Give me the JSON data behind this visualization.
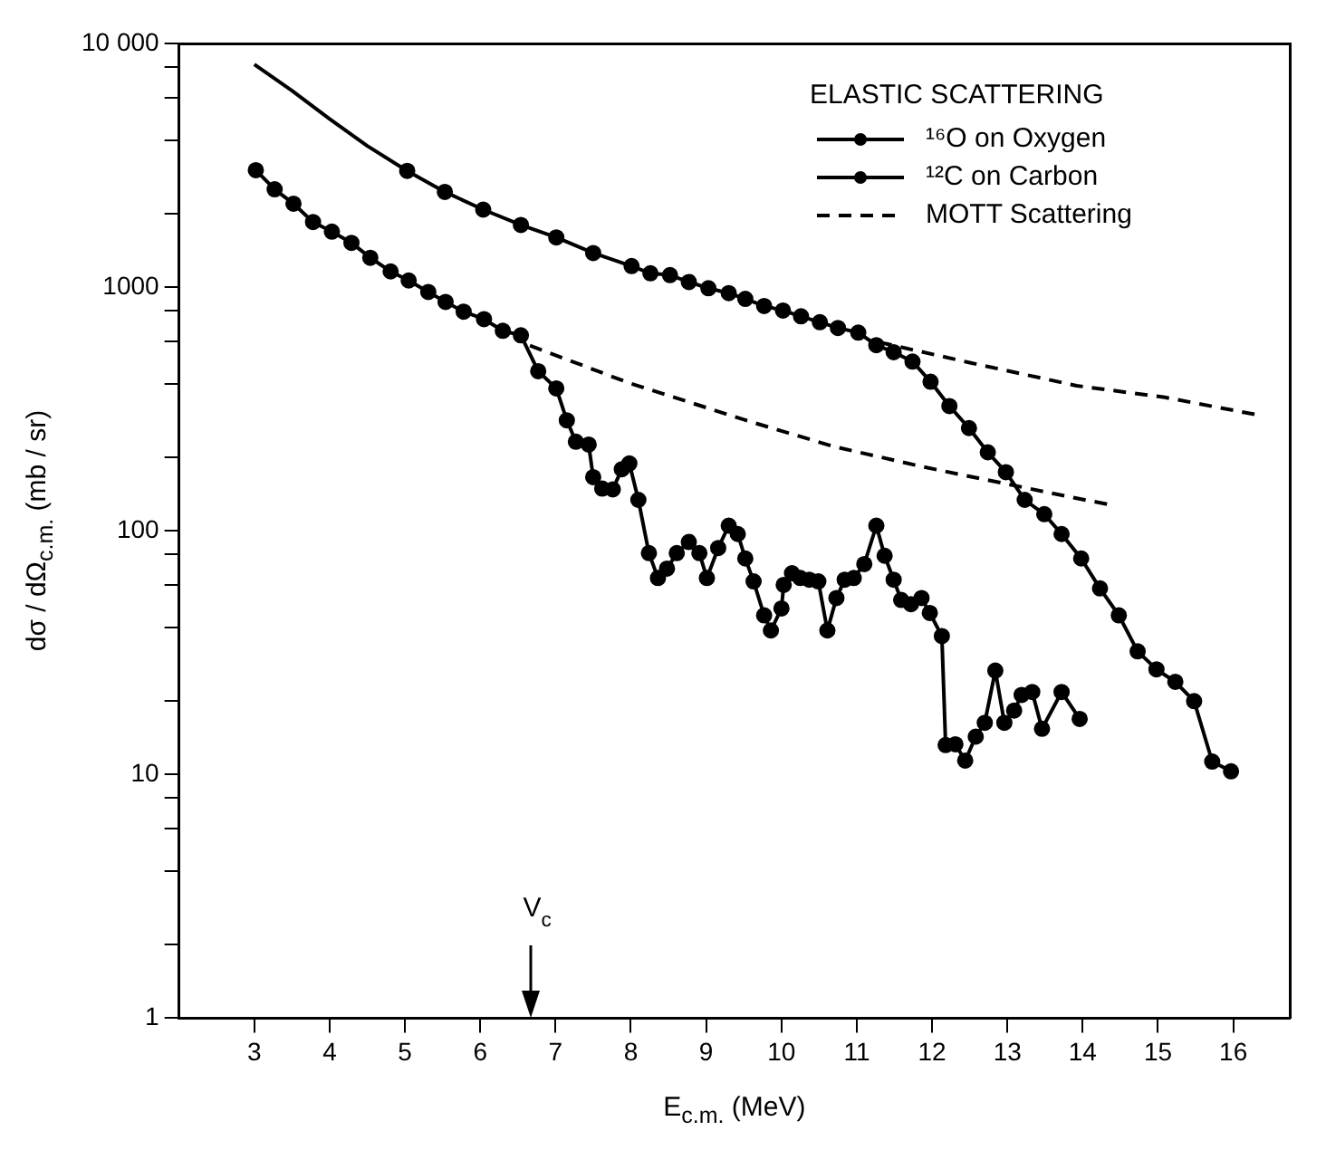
{
  "chart_data": {
    "type": "line",
    "xlabel": "E$_{c.m.}$ (MeV)",
    "ylabel": "dσ / dΩ$_{c.m.}$  (mb / sr)",
    "legend_title": "ELASTIC SCATTERING",
    "log": "y",
    "grid": false,
    "legend": "top right",
    "xlim": [
      2,
      16.75
    ],
    "xticks": [
      3,
      4,
      5,
      6,
      7,
      8,
      9,
      10,
      11,
      12,
      13,
      14,
      15,
      16
    ],
    "ylim": [
      1,
      10000
    ],
    "yticks": [
      1,
      {
        "value": 2,
        "label": null
      },
      {
        "value": 4,
        "label": null
      },
      {
        "value": 6,
        "label": null
      },
      {
        "value": 8,
        "label": null
      },
      10,
      {
        "value": 20,
        "label": null
      },
      {
        "value": 40,
        "label": null
      },
      {
        "value": 60,
        "label": null
      },
      {
        "value": 80,
        "label": null
      },
      100,
      {
        "value": 200,
        "label": null
      },
      {
        "value": 400,
        "label": null
      },
      {
        "value": 600,
        "label": null
      },
      {
        "value": 800,
        "label": null
      },
      1000,
      {
        "value": 2000,
        "label": null
      },
      {
        "value": 4000,
        "label": null
      },
      {
        "value": 6000,
        "label": null
      },
      {
        "value": 8000,
        "label": null
      },
      {
        "value": 10000,
        "label": "10 000"
      }
    ],
    "annotations": [
      "V$_{c}$"
    ],
    "series": [
      {
        "name": "¹⁶O on Oxygen",
        "color": "#000000",
        "marker": "circle",
        "line_style": "solid",
        "x": [
          5.03,
          5.53,
          6.04,
          6.54,
          7.01,
          7.5,
          8.01,
          8.26,
          8.52,
          8.77,
          9.03,
          9.3,
          9.52,
          9.77,
          10.02,
          10.26,
          10.51,
          10.75,
          11.02,
          11.26,
          11.49,
          11.74,
          11.98,
          12.23,
          12.49,
          12.74,
          12.98,
          13.23,
          13.49,
          13.72,
          13.98,
          14.23,
          14.48,
          14.73,
          14.98,
          15.23,
          15.48,
          15.72,
          15.97
        ],
        "values": [
          3000,
          2460,
          2080,
          1800,
          1600,
          1380,
          1220,
          1140,
          1120,
          1050,
          990,
          945,
          895,
          837,
          802,
          759,
          718,
          680,
          651,
          578,
          541,
          495,
          409,
          325,
          264,
          210,
          174,
          134,
          117,
          97,
          77,
          58,
          45,
          32,
          27,
          24,
          20,
          11.3,
          10.3
        ]
      },
      {
        "color": "#000000",
        "marker": "none",
        "line_style": "solid",
        "x": [
          3,
          3.5,
          4,
          4.5,
          5.03
        ],
        "values": [
          8200,
          6400,
          4900,
          3800,
          3000
        ]
      },
      {
        "name": "¹²C on Carbon",
        "color": "#000000",
        "marker": "circle",
        "line_style": "solid",
        "x": [
          3.02,
          3.27,
          3.52,
          3.78,
          4.03,
          4.29,
          4.54,
          4.81,
          5.05,
          5.31,
          5.54,
          5.78,
          6.05,
          6.3,
          6.54,
          6.77,
          7.01,
          7.15,
          7.27,
          7.44,
          7.5,
          7.62,
          7.76,
          7.88,
          7.98,
          8.1,
          8.24,
          8.36,
          8.48,
          8.61,
          8.77,
          8.91,
          9.01,
          9.16,
          9.3,
          9.42,
          9.52,
          9.63,
          9.77,
          9.86,
          10.0,
          10.03,
          10.14,
          10.25,
          10.37,
          10.49,
          10.61,
          10.73,
          10.84,
          10.96,
          11.1,
          11.26,
          11.37,
          11.49,
          11.59,
          11.72,
          11.86,
          11.97,
          12.13,
          12.18,
          12.31,
          12.44,
          12.58,
          12.7,
          12.84,
          12.96,
          13.09,
          13.19,
          13.33,
          13.46,
          13.72,
          13.96
        ],
        "values": [
          3020,
          2520,
          2200,
          1850,
          1690,
          1520,
          1320,
          1160,
          1065,
          955,
          870,
          793,
          739,
          662,
          634,
          452,
          384,
          284,
          232,
          226,
          166,
          149,
          148,
          179,
          189,
          134,
          81,
          64,
          70,
          81,
          90,
          81,
          64,
          85,
          105,
          97,
          77,
          62,
          45,
          39,
          48,
          60,
          67,
          64,
          63,
          62,
          39,
          53,
          63,
          64,
          73,
          105,
          79,
          63,
          52,
          50,
          53,
          46,
          37,
          13.2,
          13.3,
          11.4,
          14.3,
          16.3,
          26.7,
          16.3,
          18.3,
          21.2,
          21.8,
          15.4,
          21.8,
          16.9
        ]
      },
      {
        "name": "MOTT Scattering",
        "color": "#000000",
        "marker": "none",
        "line_style": "dashed",
        "x": [
          11.3,
          12.5,
          13.92,
          15.09,
          16.3
        ],
        "values": [
          594,
          490,
          394,
          353,
          300
        ]
      },
      {
        "color": "#000000",
        "marker": "none",
        "line_style": "dashed",
        "x": [
          6.66,
          7.97,
          9.53,
          10.69,
          11.88,
          13.92,
          14.42
        ],
        "values": [
          576,
          405,
          284,
          222,
          183,
          136,
          127
        ]
      }
    ]
  }
}
